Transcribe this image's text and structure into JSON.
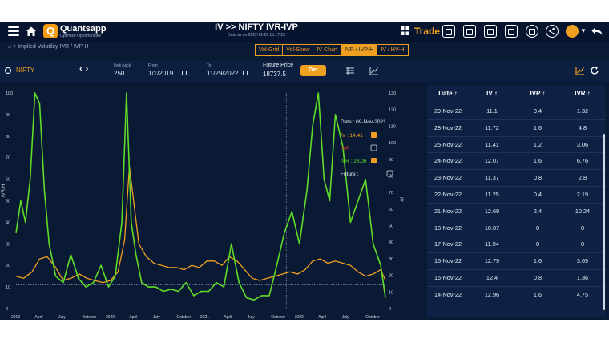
{
  "app": {
    "brand": "Quantsapp",
    "tagline": "Optimize Opportunities",
    "title": "IV >> NIFTY IVR-IVP",
    "subtitle": "Data as on 2022-11-29 15:17:23",
    "trade_label": "Trade"
  },
  "breadcrumb": "Implied Volatility IVR / IVP-H",
  "tabs": [
    "Vol-Grid",
    "Vol-Skew",
    "IV Chart",
    "IVR / IVP-H",
    "IV / HV-H"
  ],
  "active_tab": 3,
  "filters": {
    "symbol": "NIFTY",
    "lookback_label": "look back",
    "lookback_value": "250",
    "from_label": "From",
    "from_value": "1/1/2019",
    "to_label": "To",
    "to_value": "11/29/2022",
    "future_price_label": "Future Price",
    "future_price_value": "18737.5",
    "get_label": "Get"
  },
  "colors": {
    "iv": "#f0a020",
    "ivp": "#e23b2a",
    "ivr": "#5fdc28",
    "background": "#0a1a35",
    "accent": "#f0a020"
  },
  "chart_data": {
    "type": "line",
    "left_axis_label": "IVR-H",
    "right_axis_label": "IV",
    "left_ticks": [
      "100",
      "90",
      "80",
      "70",
      "60",
      "50",
      "40",
      "30",
      "20",
      "10",
      "0"
    ],
    "right_ticks": [
      "130",
      "120",
      "110",
      "100",
      "90",
      "80",
      "70",
      "60",
      "50",
      "40",
      "30",
      "20",
      "10",
      "0"
    ],
    "x_ticks": [
      "2019",
      "April",
      "July",
      "October",
      "2020",
      "April",
      "July",
      "October",
      "2021",
      "April",
      "July",
      "October",
      "2022",
      "April",
      "July",
      "October"
    ],
    "ylim_left": [
      0,
      100
    ],
    "ylim_right": [
      0,
      130
    ],
    "tooltip": {
      "date": "Date : 09-Nov-2021",
      "iv": "IV : 14.41",
      "ivp": "IVP",
      "ivr": "IVR : 28.06",
      "future": "Future :"
    },
    "series": [
      {
        "name": "IV",
        "color": "#f0a020",
        "x": [
          2019.0,
          2019.08,
          2019.17,
          2019.25,
          2019.33,
          2019.42,
          2019.5,
          2019.58,
          2019.67,
          2019.75,
          2019.83,
          2019.92,
          2020.0,
          2020.08,
          2020.15,
          2020.2,
          2020.25,
          2020.3,
          2020.38,
          2020.46,
          2020.54,
          2020.62,
          2020.7,
          2020.78,
          2020.86,
          2020.94,
          2021.02,
          2021.1,
          2021.18,
          2021.26,
          2021.34,
          2021.42,
          2021.5,
          2021.58,
          2021.66,
          2021.74,
          2021.82,
          2021.9,
          2021.98,
          2022.06,
          2022.14,
          2022.22,
          2022.3,
          2022.38,
          2022.46,
          2022.54,
          2022.62,
          2022.7,
          2022.78,
          2022.86,
          2022.91
        ],
        "y": [
          15,
          14,
          17,
          23,
          24,
          19,
          13,
          14,
          16,
          14,
          13,
          12,
          13,
          17,
          32,
          66,
          48,
          30,
          24,
          21,
          20,
          19,
          19,
          18,
          20,
          19,
          22,
          22,
          20,
          24,
          22,
          18,
          14,
          13,
          14,
          15,
          16,
          17,
          16,
          18,
          22,
          23,
          21,
          22,
          21,
          20,
          17,
          15,
          16,
          18,
          13
        ]
      },
      {
        "name": "IVR",
        "color": "#5fdc28",
        "x": [
          2019.0,
          2019.05,
          2019.1,
          2019.15,
          2019.2,
          2019.25,
          2019.3,
          2019.35,
          2019.42,
          2019.5,
          2019.58,
          2019.66,
          2019.74,
          2019.82,
          2019.9,
          2019.98,
          2020.05,
          2020.12,
          2020.17,
          2020.22,
          2020.27,
          2020.33,
          2020.4,
          2020.48,
          2020.56,
          2020.64,
          2020.72,
          2020.8,
          2020.88,
          2020.96,
          2021.04,
          2021.12,
          2021.2,
          2021.28,
          2021.36,
          2021.44,
          2021.52,
          2021.6,
          2021.68,
          2021.76,
          2021.84,
          2021.92,
          2022.0,
          2022.08,
          2022.14,
          2022.2,
          2022.26,
          2022.32,
          2022.38,
          2022.46,
          2022.54,
          2022.62,
          2022.7,
          2022.78,
          2022.86,
          2022.91
        ],
        "y": [
          35,
          50,
          40,
          60,
          100,
          95,
          55,
          30,
          15,
          12,
          25,
          14,
          10,
          12,
          20,
          10,
          15,
          40,
          100,
          40,
          25,
          12,
          10,
          10,
          8,
          9,
          8,
          12,
          6,
          8,
          8,
          12,
          10,
          30,
          12,
          5,
          4,
          6,
          6,
          20,
          35,
          45,
          30,
          55,
          85,
          100,
          60,
          50,
          90,
          75,
          40,
          50,
          60,
          30,
          20,
          5
        ]
      }
    ]
  },
  "table": {
    "headers": [
      "Date ↑",
      "IV ↑",
      "IVP ↑",
      "IVR ↑"
    ],
    "rows": [
      [
        "29-Nov-22",
        "11.1",
        "0.4",
        "1.32"
      ],
      [
        "28-Nov-22",
        "11.72",
        "1.6",
        "4.8"
      ],
      [
        "25-Nov-22",
        "11.41",
        "1.2",
        "3.06"
      ],
      [
        "24-Nov-22",
        "12.07",
        "1.6",
        "6.76"
      ],
      [
        "23-Nov-22",
        "11.37",
        "0.8",
        "2.8"
      ],
      [
        "22-Nov-22",
        "11.25",
        "0.4",
        "2.19"
      ],
      [
        "21-Nov-22",
        "12.69",
        "2.4",
        "10.24"
      ],
      [
        "18-Nov-22",
        "10.87",
        "0",
        "0"
      ],
      [
        "17-Nov-22",
        "11.94",
        "0",
        "0"
      ],
      [
        "16-Nov-22",
        "12.79",
        "1.6",
        "3.69"
      ],
      [
        "15-Nov-22",
        "12.4",
        "0.8",
        "1.36"
      ],
      [
        "14-Nov-22",
        "12.96",
        "1.6",
        "4.75"
      ]
    ]
  }
}
